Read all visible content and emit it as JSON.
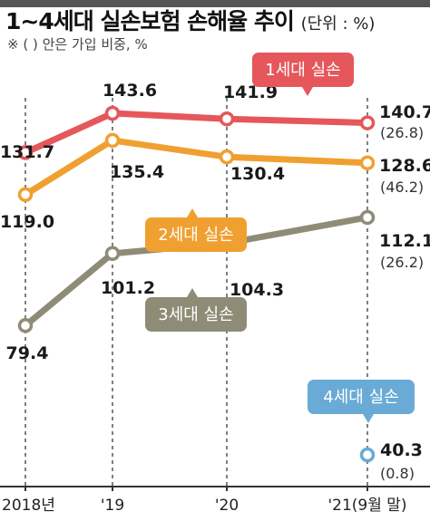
{
  "title": "1~4세대 실손보험 손해율 추이",
  "unit": "(단위 : %)",
  "note": "※ (   ) 안은 가입 비중, %",
  "colors": {
    "gen1": "#e5575a",
    "gen2": "#f0a030",
    "gen3": "#8e8c76",
    "gen4": "#6aaad6",
    "axis": "#333333",
    "grid": "#555555"
  },
  "chart_data": {
    "type": "line",
    "categories": [
      "2018년",
      "'19",
      "'20",
      "'21(9월 말)"
    ],
    "grid": "vertical dashed",
    "series": [
      {
        "name": "1세대 실손",
        "values": [
          131.7,
          143.6,
          141.9,
          140.7
        ],
        "share_labels": [
          "",
          "",
          "",
          "(26.8)"
        ]
      },
      {
        "name": "2세대 실손",
        "values": [
          119.0,
          135.4,
          130.4,
          128.6
        ],
        "share_labels": [
          "",
          "",
          "",
          "(46.2)"
        ]
      },
      {
        "name": "3세대 실손",
        "values": [
          79.4,
          101.2,
          104.3,
          112.1
        ],
        "share_labels": [
          "",
          "",
          "",
          "(26.2)"
        ]
      },
      {
        "name": "4세대 실손",
        "values": [
          null,
          null,
          null,
          40.3
        ],
        "share_labels": [
          "",
          "",
          "",
          "(0.8)"
        ]
      }
    ],
    "value_labels": [
      [
        "131.7",
        "143.6",
        "141.9",
        "140.7"
      ],
      [
        "119.0",
        "135.4",
        "130.4",
        "128.6"
      ],
      [
        "79.4",
        "101.2",
        "104.3",
        "112.1"
      ],
      [
        "",
        "",
        "",
        "40.3"
      ]
    ]
  }
}
